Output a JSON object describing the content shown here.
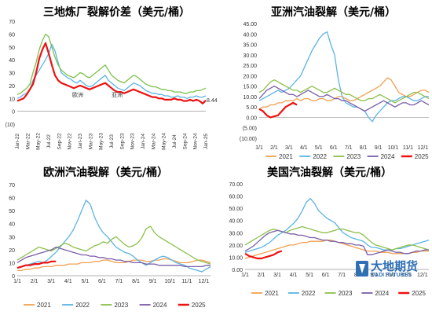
{
  "chart_data": [
    {
      "id": "c1",
      "type": "line",
      "title": "三地炼厂裂解价差（美元/桶）",
      "ylim": [
        -10,
        70
      ],
      "yticks": [
        -10,
        0,
        10,
        20,
        30,
        40,
        50,
        60,
        70
      ],
      "ytick_labels": [
        "(10)",
        "0",
        "10",
        "20",
        "30",
        "40",
        "50",
        "60",
        "70"
      ],
      "xticks": [
        "Jan-22",
        "Mar-22",
        "May-22",
        "Jul-22",
        "Sep-22",
        "Nov-22",
        "Jan-23",
        "Mar-23",
        "May-23",
        "Jul-23",
        "Sep-23",
        "Nov-23",
        "Jan-24",
        "Mar-24",
        "May-24",
        "Jul-24",
        "Sep-24",
        "Nov-24",
        "Jan-25"
      ],
      "last_value_label": "8.44",
      "legend_faint": [
        "欧洲",
        "亚洲"
      ],
      "series": [
        {
          "color": "#5ab4e6",
          "values": [
            10,
            11,
            13,
            14,
            17,
            24,
            28,
            32,
            36,
            40,
            45,
            52,
            47,
            38,
            30,
            28,
            26,
            25,
            23,
            22,
            24,
            22,
            20,
            19,
            20,
            22,
            24,
            26,
            28,
            24,
            22,
            20,
            18,
            17,
            16,
            18,
            20,
            22,
            21,
            20,
            18,
            16,
            15,
            14,
            14,
            13,
            13,
            12,
            12,
            11,
            11,
            12,
            11,
            11,
            10,
            11,
            11,
            12,
            11,
            11,
            12
          ]
        },
        {
          "color": "#7cc04a",
          "values": [
            13,
            14,
            16,
            18,
            21,
            30,
            38,
            48,
            55,
            60,
            58,
            50,
            42,
            36,
            32,
            30,
            28,
            27,
            26,
            28,
            30,
            29,
            27,
            26,
            28,
            30,
            32,
            34,
            36,
            32,
            28,
            26,
            24,
            23,
            22,
            24,
            26,
            28,
            27,
            25,
            23,
            21,
            20,
            19,
            19,
            18,
            17,
            17,
            16,
            16,
            15,
            15,
            15,
            14,
            14,
            15,
            15,
            16,
            16,
            17,
            18
          ]
        },
        {
          "color": "#ee1111",
          "values": [
            8,
            9,
            10,
            13,
            17,
            21,
            30,
            41,
            48,
            53,
            45,
            36,
            28,
            24,
            22,
            21,
            20,
            19,
            18,
            19,
            20,
            19,
            18,
            17,
            18,
            19,
            20,
            21,
            22,
            20,
            18,
            16,
            15,
            15,
            14,
            15,
            16,
            17,
            16,
            15,
            14,
            13,
            12,
            11,
            11,
            10,
            10,
            9,
            9,
            9,
            10,
            9,
            9,
            8,
            8,
            9,
            8,
            9,
            8,
            6,
            8.44
          ]
        }
      ]
    },
    {
      "id": "c2",
      "type": "line",
      "title": "亚洲汽油裂解（美元/桶）",
      "ylim": [
        -10,
        45
      ],
      "yticks": [
        -10,
        -5,
        0,
        5,
        10,
        15,
        20,
        25,
        30,
        35,
        40,
        45
      ],
      "ytick_labels": [
        "(10.00)",
        "(5.00)",
        "0.00",
        "5.00",
        "10.00",
        "15.00",
        "20.00",
        "25.00",
        "30.00",
        "35.00",
        "40.00",
        "45.00"
      ],
      "xticks": [
        "1/1",
        "2/1",
        "3/1",
        "4/1",
        "5/1",
        "6/1",
        "7/1",
        "8/1",
        "9/1",
        "10/1",
        "11/1",
        "12/1"
      ],
      "legend": [
        "2021",
        "2022",
        "2023",
        "2024",
        "2025"
      ],
      "series": [
        {
          "name": "2021",
          "color": "#f0a050",
          "values": [
            4,
            5,
            5,
            6,
            6,
            7,
            7,
            8,
            8,
            8,
            9,
            8,
            9,
            9,
            8,
            8,
            9,
            9,
            8,
            8,
            9,
            10,
            10,
            9,
            8,
            8,
            9,
            10,
            11,
            12,
            13,
            14,
            15,
            17,
            19,
            18,
            15,
            12,
            11,
            10,
            10,
            11,
            12,
            13,
            13,
            12
          ]
        },
        {
          "name": "2022",
          "color": "#5ab4e6",
          "values": [
            8,
            9,
            10,
            11,
            12,
            13,
            12,
            13,
            14,
            16,
            18,
            20,
            24,
            28,
            32,
            35,
            38,
            40,
            41,
            35,
            30,
            18,
            10,
            7,
            6,
            5,
            5,
            4,
            3,
            0,
            -2,
            1,
            3,
            5,
            7,
            8,
            8,
            9,
            10,
            10,
            9,
            8,
            8,
            9,
            10,
            10
          ]
        },
        {
          "name": "2023",
          "color": "#8cc04a",
          "values": [
            12,
            13,
            15,
            17,
            18,
            17,
            16,
            15,
            14,
            13,
            13,
            12,
            13,
            14,
            15,
            14,
            13,
            12,
            12,
            13,
            14,
            13,
            12,
            11,
            11,
            10,
            9,
            8,
            8,
            9,
            9,
            10,
            11,
            10,
            9,
            8,
            7,
            8,
            9,
            10,
            11,
            12,
            12,
            11,
            10,
            9
          ]
        },
        {
          "name": "2024",
          "color": "#7a5ea8",
          "values": [
            9,
            11,
            13,
            14,
            15,
            14,
            13,
            12,
            11,
            11,
            10,
            11,
            12,
            13,
            12,
            11,
            10,
            10,
            11,
            10,
            9,
            9,
            8,
            8,
            7,
            6,
            5,
            4,
            3,
            4,
            5,
            6,
            7,
            8,
            7,
            6,
            5,
            6,
            7,
            7,
            6,
            6,
            7,
            8,
            7,
            6
          ]
        },
        {
          "name": "2025",
          "color": "#ee1111",
          "values": [
            4,
            3,
            1,
            0,
            0.5,
            1,
            3,
            5,
            6,
            7,
            6
          ]
        }
      ]
    },
    {
      "id": "c3",
      "type": "line",
      "title": "欧洲汽油裂解（美元/桶）",
      "ylim": [
        0,
        70
      ],
      "yticks": [
        0,
        10,
        20,
        30,
        40,
        50,
        60,
        70
      ],
      "ytick_labels": [
        "0",
        "10",
        "20",
        "30",
        "40",
        "50",
        "60",
        "70"
      ],
      "xticks": [
        "1/1",
        "2/1",
        "3/1",
        "4/1",
        "5/1",
        "6/1",
        "7/1",
        "8/1",
        "9/1",
        "10/1",
        "11/1",
        "12/1"
      ],
      "legend": [
        "2021",
        "2022",
        "2023",
        "2024",
        "2025"
      ],
      "series": [
        {
          "name": "2021",
          "color": "#f0a050",
          "values": [
            4,
            4,
            5,
            5,
            6,
            6,
            7,
            7,
            7,
            8,
            8,
            8,
            9,
            9,
            9,
            10,
            10,
            10,
            11,
            11,
            12,
            12,
            11,
            10,
            10,
            10,
            11,
            12,
            12,
            12,
            11,
            11,
            12,
            12,
            13,
            13,
            12,
            11,
            10,
            10,
            10,
            11,
            12,
            12,
            11,
            10
          ]
        },
        {
          "name": "2022",
          "color": "#5ab4e6",
          "values": [
            6,
            7,
            8,
            9,
            10,
            11,
            10,
            12,
            15,
            18,
            22,
            26,
            30,
            35,
            42,
            50,
            58,
            55,
            45,
            38,
            33,
            30,
            26,
            22,
            20,
            18,
            17,
            15,
            12,
            10,
            8,
            10,
            12,
            14,
            15,
            14,
            12,
            10,
            9,
            8,
            6,
            5,
            4,
            3,
            5,
            7
          ]
        },
        {
          "name": "2023",
          "color": "#8cc04a",
          "values": [
            12,
            14,
            16,
            18,
            20,
            22,
            21,
            20,
            19,
            21,
            23,
            25,
            24,
            22,
            21,
            20,
            19,
            21,
            23,
            24,
            26,
            25,
            28,
            30,
            27,
            24,
            22,
            23,
            25,
            29,
            36,
            38,
            33,
            30,
            28,
            26,
            24,
            22,
            20,
            18,
            16,
            14,
            12,
            11,
            10,
            9
          ]
        },
        {
          "name": "2024",
          "color": "#7a5ea8",
          "values": [
            10,
            12,
            14,
            15,
            16,
            17,
            18,
            19,
            20,
            22,
            21,
            20,
            19,
            18,
            17,
            16,
            16,
            15,
            15,
            14,
            14,
            13,
            13,
            12,
            12,
            11,
            11,
            10,
            10,
            10,
            9,
            9,
            9,
            8,
            8,
            8,
            8,
            8,
            8,
            7,
            7,
            7,
            7,
            7,
            8,
            8
          ]
        },
        {
          "name": "2025",
          "color": "#ee1111",
          "values": [
            6,
            7,
            8,
            8,
            9,
            9,
            10,
            10,
            11,
            11
          ]
        }
      ]
    },
    {
      "id": "c4",
      "type": "line",
      "title": "美国汽油裂解（美元/桶）",
      "ylim": [
        0,
        70
      ],
      "yticks": [
        0,
        10,
        20,
        30,
        40,
        50,
        60,
        70
      ],
      "ytick_labels": [
        "0.00",
        "10.00",
        "20.00",
        "30.00",
        "40.00",
        "50.00",
        "60.00",
        "70.00"
      ],
      "xticks": [
        "1/1",
        "2/1",
        "3/1",
        "4/1",
        "5/1",
        "6/1",
        "7/1",
        "8/1",
        "9/1",
        "10/1",
        "11/1",
        "12/1"
      ],
      "legend": [
        "2021",
        "2022",
        "2023",
        "2024",
        "2025"
      ],
      "series": [
        {
          "name": "2021",
          "color": "#f0a050",
          "values": [
            9,
            10,
            11,
            12,
            13,
            14,
            15,
            16,
            17,
            18,
            19,
            20,
            20,
            21,
            22,
            22,
            23,
            23,
            23,
            23,
            24,
            24,
            23,
            22,
            21,
            20,
            19,
            18,
            17,
            16,
            15,
            15,
            15,
            14,
            14,
            14,
            13,
            13,
            13,
            13,
            13,
            14,
            14,
            15,
            15,
            15
          ]
        },
        {
          "name": "2022",
          "color": "#5ab4e6",
          "values": [
            14,
            15,
            16,
            17,
            18,
            20,
            22,
            25,
            28,
            30,
            32,
            35,
            38,
            42,
            48,
            55,
            58,
            54,
            48,
            45,
            42,
            40,
            38,
            34,
            30,
            28,
            26,
            25,
            24,
            23,
            20,
            18,
            18,
            17,
            16,
            16,
            16,
            17,
            17,
            18,
            19,
            20,
            21,
            22,
            23,
            24
          ]
        },
        {
          "name": "2023",
          "color": "#8cc04a",
          "values": [
            20,
            22,
            24,
            26,
            28,
            30,
            32,
            33,
            32,
            31,
            30,
            32,
            33,
            34,
            35,
            34,
            33,
            32,
            31,
            30,
            30,
            31,
            32,
            33,
            33,
            32,
            31,
            30,
            30,
            28,
            25,
            22,
            20,
            19,
            18,
            17,
            16,
            17,
            18,
            19,
            20,
            20,
            19,
            18,
            17,
            16
          ]
        },
        {
          "name": "2024",
          "color": "#7a5ea8",
          "values": [
            15,
            17,
            19,
            22,
            25,
            28,
            30,
            31,
            32,
            31,
            30,
            29,
            29,
            28,
            28,
            27,
            26,
            26,
            25,
            24,
            24,
            23,
            23,
            22,
            22,
            21,
            21,
            20,
            20,
            19,
            12,
            12,
            13,
            14,
            15,
            16,
            15,
            14,
            14,
            13,
            13,
            14,
            15,
            15,
            16,
            16
          ]
        },
        {
          "name": "2025",
          "color": "#ee1111",
          "values": [
            13,
            11,
            10,
            9,
            9,
            10,
            11,
            12,
            14,
            15
          ]
        }
      ]
    }
  ],
  "logo": {
    "name": "大地期货",
    "sub": "DADI FUTURES"
  }
}
